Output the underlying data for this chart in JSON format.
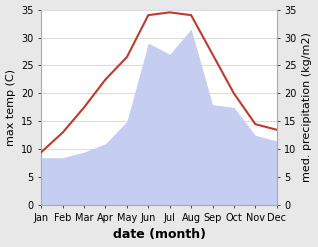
{
  "months": [
    "Jan",
    "Feb",
    "Mar",
    "Apr",
    "May",
    "Jun",
    "Jul",
    "Aug",
    "Sep",
    "Oct",
    "Nov",
    "Dec"
  ],
  "temperature": [
    9.5,
    13.0,
    17.5,
    22.5,
    26.5,
    34.0,
    34.5,
    34.0,
    27.0,
    20.0,
    14.5,
    13.5
  ],
  "precipitation": [
    8.5,
    8.5,
    9.5,
    11.0,
    15.0,
    29.0,
    27.0,
    31.5,
    18.0,
    17.5,
    12.5,
    11.5
  ],
  "temp_color": "#c0392b",
  "precip_color": "#c5cef0",
  "ylim": [
    0,
    35
  ],
  "yticks": [
    0,
    5,
    10,
    15,
    20,
    25,
    30,
    35
  ],
  "ylabel_left": "max temp (C)",
  "ylabel_right": "med. precipitation (kg/m2)",
  "xlabel": "date (month)",
  "bg_color": "#ffffff",
  "fig_bg_color": "#e8e8e8",
  "tick_fontsize": 7,
  "ylabel_fontsize": 8,
  "xlabel_fontsize": 9
}
